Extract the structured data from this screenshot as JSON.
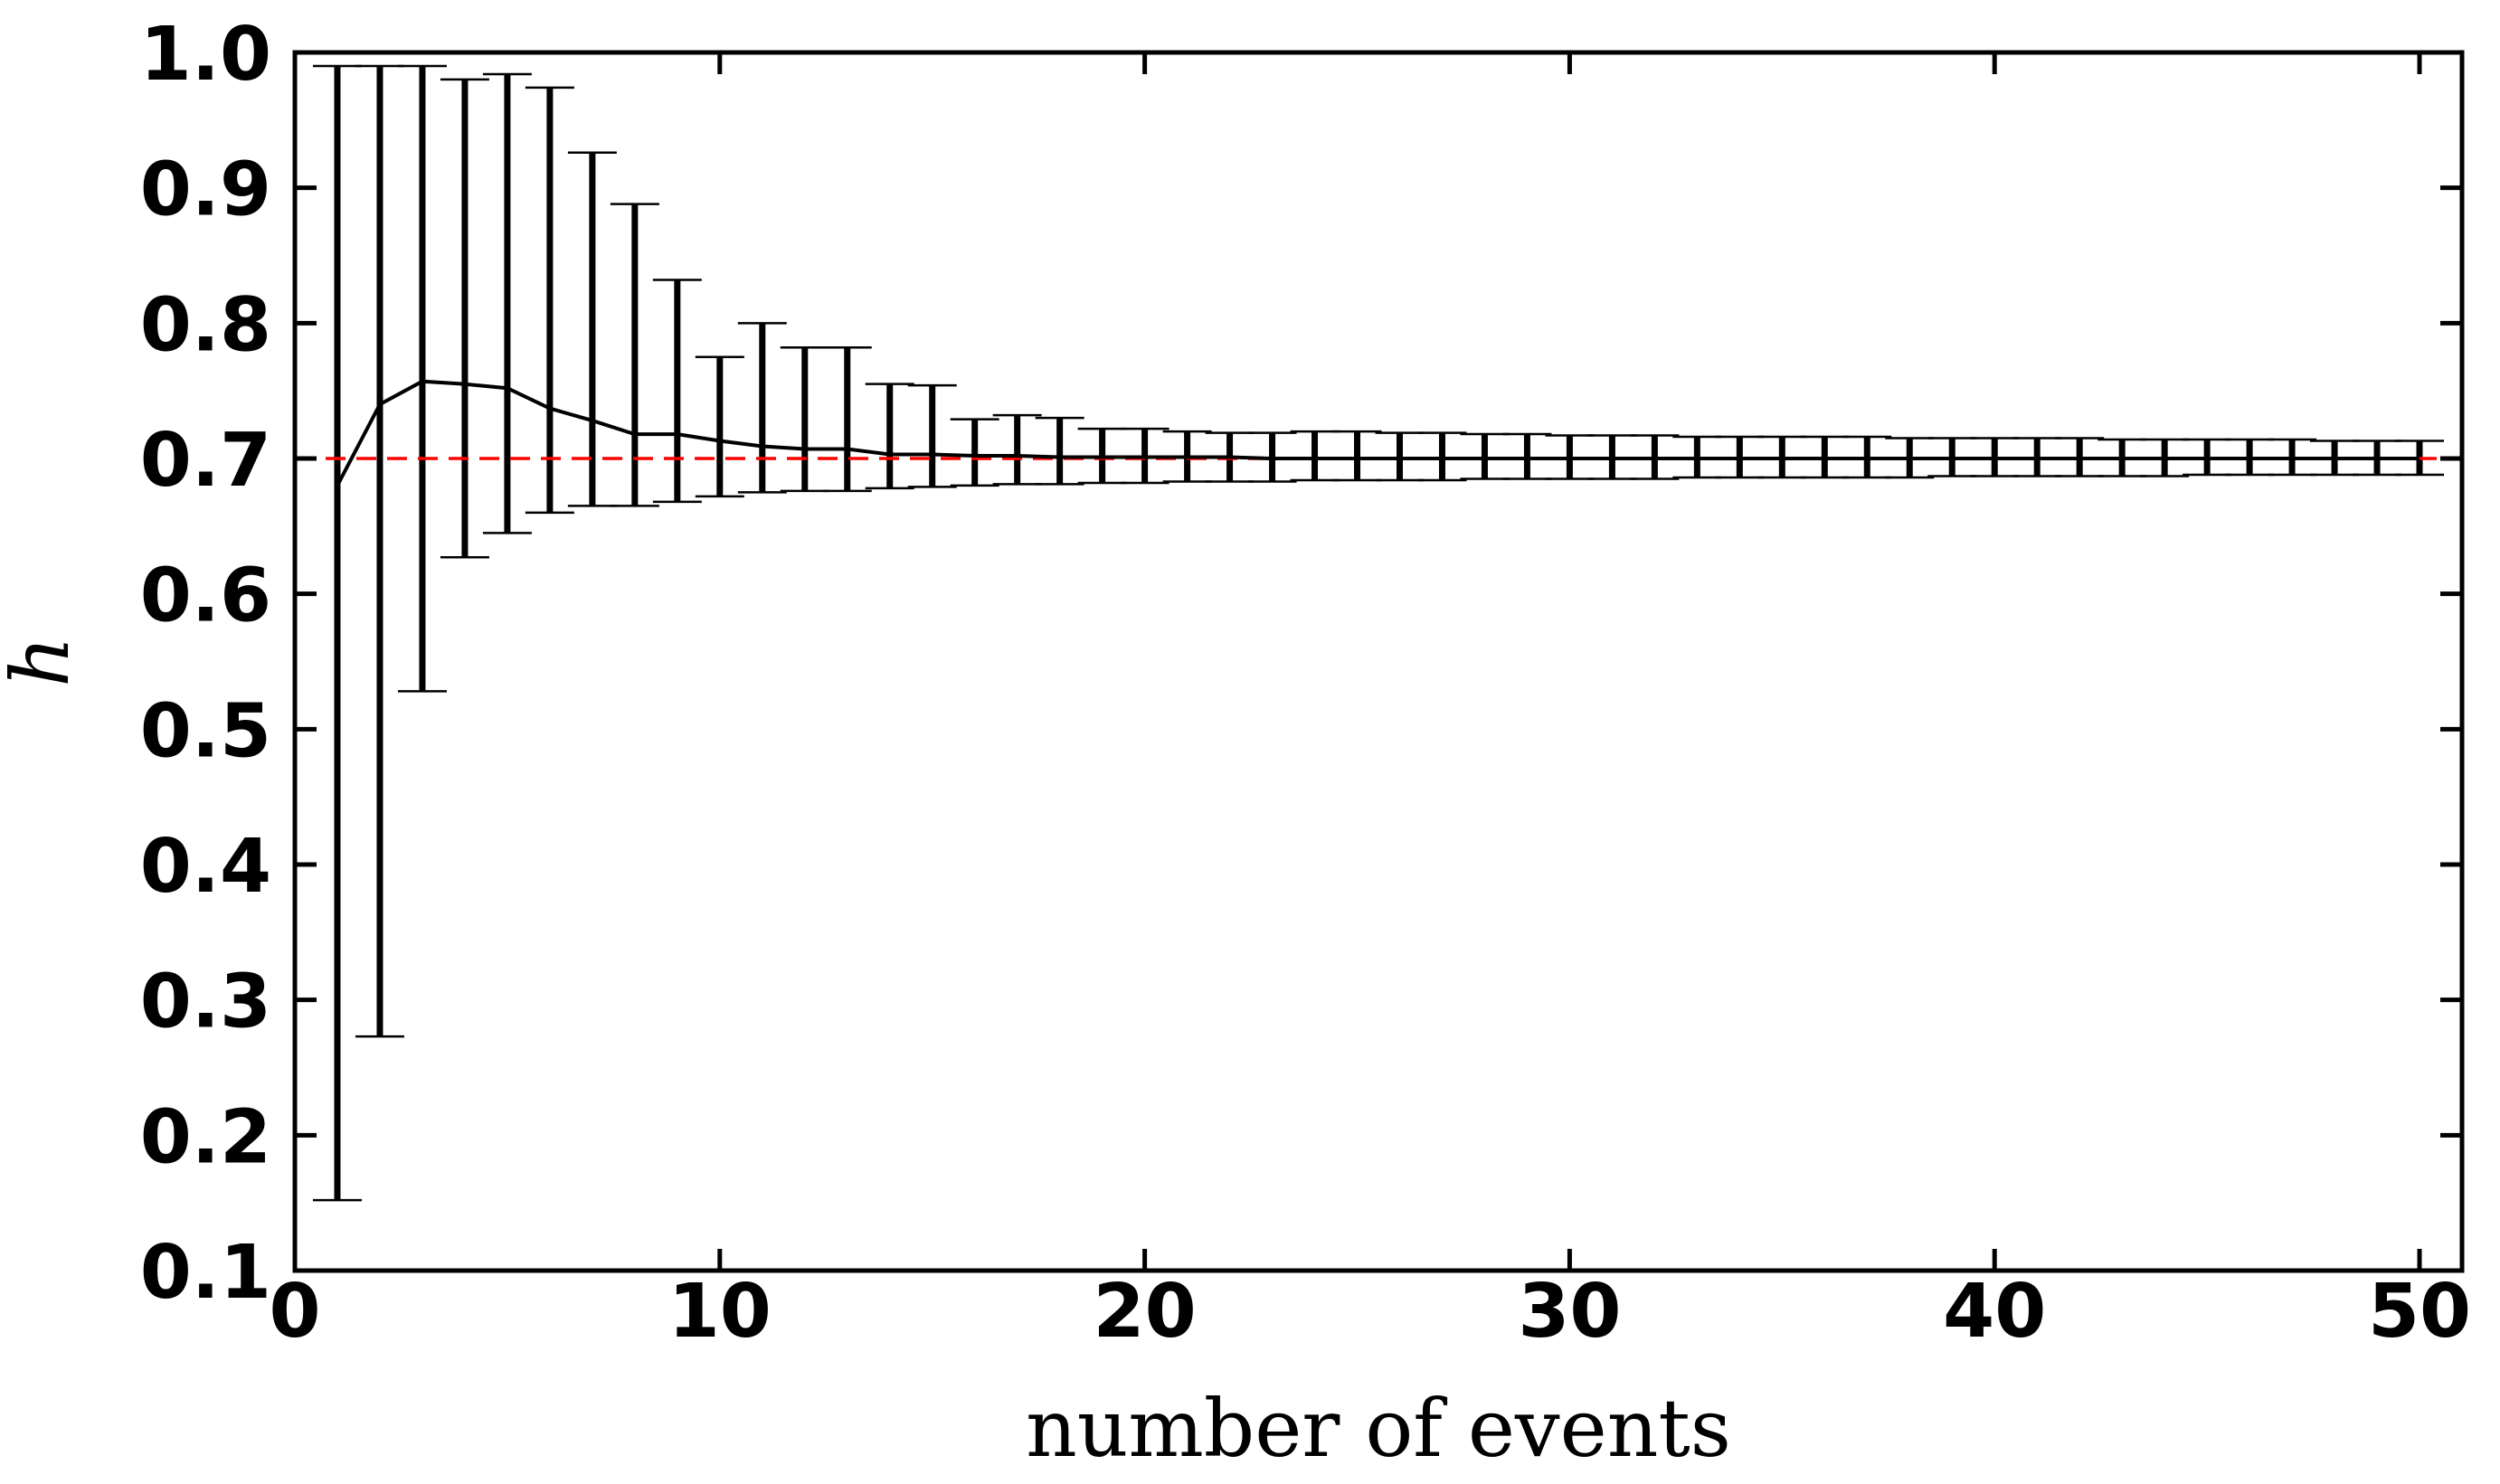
{
  "chart_data": {
    "type": "line",
    "title": "",
    "xlabel": "number of events",
    "ylabel": "h",
    "xlim": [
      0,
      51
    ],
    "ylim": [
      0.1,
      1.0
    ],
    "xticks": [
      0,
      10,
      20,
      30,
      40,
      50
    ],
    "yticks": [
      0.1,
      0.2,
      0.3,
      0.4,
      0.5,
      0.6,
      0.7,
      0.8,
      0.9,
      1.0
    ],
    "xtick_labels": [
      "0",
      "10",
      "20",
      "30",
      "40",
      "50"
    ],
    "ytick_labels": [
      "0.1",
      "0.2",
      "0.3",
      "0.4",
      "0.5",
      "0.6",
      "0.7",
      "0.8",
      "0.9",
      "1.0"
    ],
    "grid": false,
    "reference_line": {
      "y": 0.7,
      "color": "#ff0000",
      "style": "dashed"
    },
    "series": [
      {
        "color": "#000000",
        "x": [
          1,
          2,
          3,
          4,
          5,
          6,
          7,
          8,
          9,
          10,
          11,
          12,
          13,
          14,
          15,
          16,
          17,
          18,
          19,
          20,
          21,
          22,
          23,
          24,
          25,
          26,
          27,
          28,
          29,
          30,
          31,
          32,
          33,
          34,
          35,
          36,
          37,
          38,
          39,
          40,
          41,
          42,
          43,
          44,
          45,
          46,
          47,
          48,
          49,
          50
        ],
        "y": [
          0.68,
          0.74,
          0.757,
          0.755,
          0.752,
          0.737,
          0.728,
          0.718,
          0.718,
          0.713,
          0.709,
          0.707,
          0.707,
          0.703,
          0.703,
          0.702,
          0.702,
          0.701,
          0.701,
          0.701,
          0.701,
          0.701,
          0.7,
          0.7,
          0.7,
          0.7,
          0.7,
          0.7,
          0.7,
          0.7,
          0.7,
          0.7,
          0.7,
          0.7,
          0.7,
          0.7,
          0.7,
          0.7,
          0.7,
          0.7,
          0.7,
          0.7,
          0.7,
          0.7,
          0.7,
          0.7,
          0.7,
          0.7,
          0.7,
          0.7
        ],
        "err_low": [
          0.152,
          0.273,
          0.528,
          0.627,
          0.645,
          0.66,
          0.665,
          0.665,
          0.668,
          0.672,
          0.675,
          0.676,
          0.676,
          0.678,
          0.679,
          0.68,
          0.681,
          0.681,
          0.682,
          0.682,
          0.683,
          0.683,
          0.683,
          0.684,
          0.684,
          0.684,
          0.684,
          0.685,
          0.685,
          0.685,
          0.685,
          0.685,
          0.686,
          0.686,
          0.686,
          0.686,
          0.686,
          0.686,
          0.687,
          0.687,
          0.687,
          0.687,
          0.687,
          0.687,
          0.688,
          0.688,
          0.688,
          0.688,
          0.688,
          0.688
        ],
        "err_high": [
          0.99,
          0.99,
          0.99,
          0.98,
          0.984,
          0.974,
          0.926,
          0.888,
          0.832,
          0.775,
          0.8,
          0.782,
          0.782,
          0.755,
          0.754,
          0.729,
          0.732,
          0.73,
          0.722,
          0.722,
          0.72,
          0.719,
          0.719,
          0.72,
          0.72,
          0.719,
          0.719,
          0.718,
          0.718,
          0.717,
          0.717,
          0.717,
          0.716,
          0.716,
          0.716,
          0.716,
          0.716,
          0.715,
          0.715,
          0.715,
          0.715,
          0.715,
          0.714,
          0.714,
          0.714,
          0.714,
          0.714,
          0.713,
          0.713,
          0.713
        ]
      }
    ]
  }
}
